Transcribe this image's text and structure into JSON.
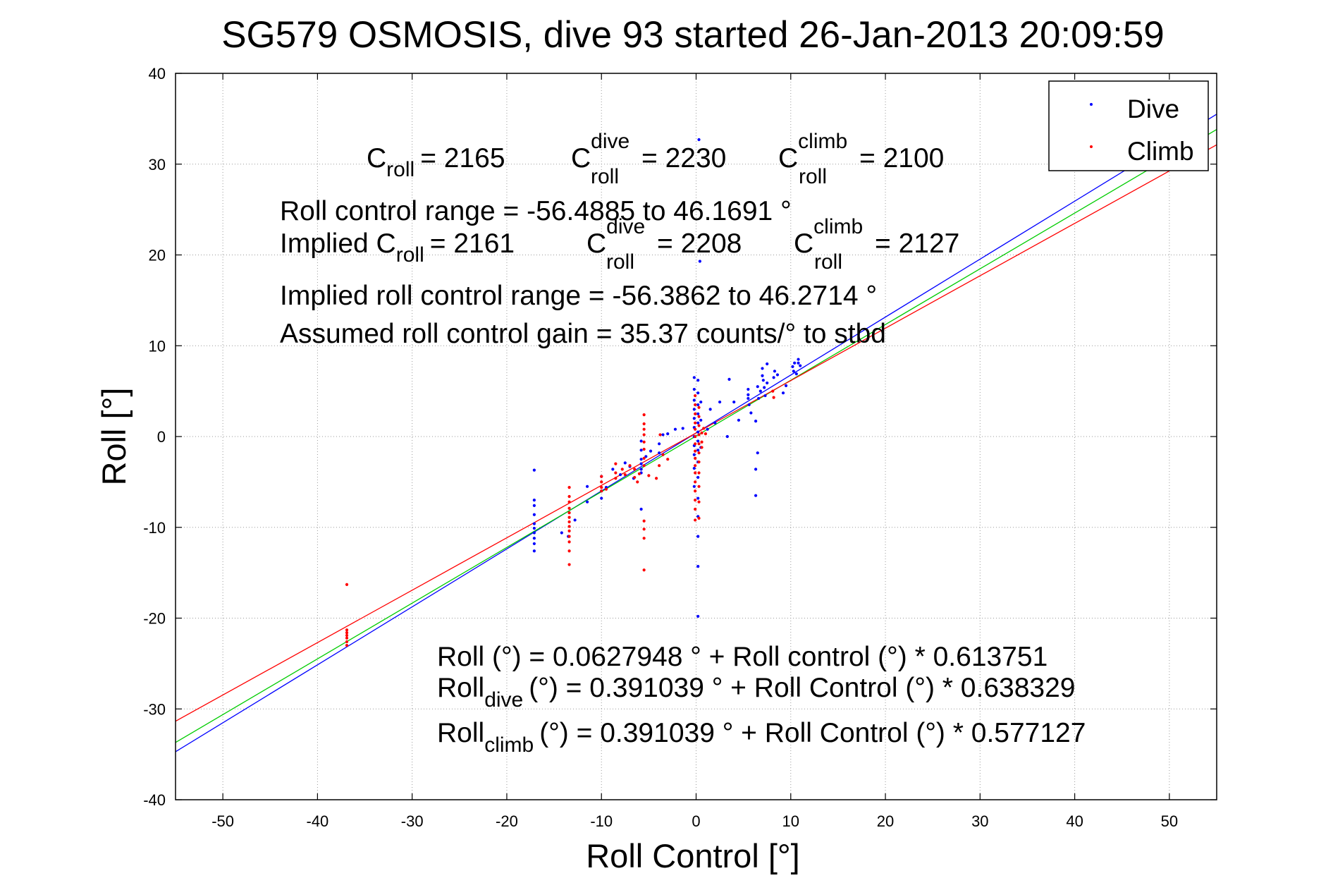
{
  "chart_data": {
    "type": "scatter",
    "title": "SG579 OSMOSIS, dive 93 started 26-Jan-2013 20:09:59",
    "xlabel": "Roll Control [°]",
    "ylabel": "Roll [°]",
    "xlim": [
      -55,
      55
    ],
    "ylim": [
      -40,
      40
    ],
    "xticks": [
      -50,
      -40,
      -30,
      -20,
      -10,
      0,
      10,
      20,
      30,
      40,
      50
    ],
    "yticks": [
      -40,
      -30,
      -20,
      -10,
      0,
      10,
      20,
      30,
      40
    ],
    "grid": true,
    "legend_position": "top-right",
    "legend": [
      {
        "label": "Dive",
        "color": "#0000ff"
      },
      {
        "label": "Climb",
        "color": "#ff0000"
      }
    ],
    "series": [
      {
        "name": "Dive",
        "color": "#0000ff",
        "marker": "dot",
        "points": [
          [
            -17.1,
            -3.7
          ],
          [
            -17.1,
            -7.0
          ],
          [
            -17.1,
            -7.6
          ],
          [
            -17.1,
            -8.6
          ],
          [
            -17.1,
            -9.6
          ],
          [
            -17.1,
            -10.1
          ],
          [
            -17.1,
            -10.6
          ],
          [
            -17.1,
            -11.2
          ],
          [
            -17.1,
            -11.8
          ],
          [
            -17.1,
            -12.6
          ],
          [
            -14.2,
            -10.6
          ],
          [
            -13.5,
            -11.0
          ],
          [
            -12.8,
            -9.2
          ],
          [
            -11.5,
            -5.5
          ],
          [
            -11.5,
            -7.2
          ],
          [
            -10.0,
            -4.4
          ],
          [
            -10.0,
            -6.0
          ],
          [
            -10.0,
            -6.8
          ],
          [
            -9.5,
            -5.6
          ],
          [
            -8.8,
            -3.6
          ],
          [
            -8.0,
            -4.2
          ],
          [
            -7.5,
            -2.9
          ],
          [
            -7.0,
            -3.3
          ],
          [
            -6.6,
            -4.6
          ],
          [
            -5.8,
            -0.5
          ],
          [
            -5.8,
            -1.5
          ],
          [
            -5.8,
            -2.5
          ],
          [
            -5.8,
            -3.0
          ],
          [
            -5.8,
            -3.6
          ],
          [
            -5.8,
            -4.0
          ],
          [
            -5.8,
            -8.0
          ],
          [
            -5.3,
            -2.2
          ],
          [
            -4.8,
            -1.6
          ],
          [
            -3.9,
            -0.8
          ],
          [
            -3.9,
            -1.8
          ],
          [
            -3.5,
            0.2
          ],
          [
            -3.0,
            0.3
          ],
          [
            -2.2,
            0.8
          ],
          [
            -1.4,
            0.9
          ],
          [
            -0.2,
            6.5
          ],
          [
            -0.2,
            5.2
          ],
          [
            -0.2,
            4.0
          ],
          [
            -0.2,
            3.0
          ],
          [
            -0.2,
            2.0
          ],
          [
            -0.2,
            1.0
          ],
          [
            -0.2,
            0.0
          ],
          [
            -0.2,
            -1.0
          ],
          [
            -0.2,
            -2.0
          ],
          [
            -0.2,
            -3.5
          ],
          [
            -0.2,
            -5.5
          ],
          [
            0.2,
            6.2
          ],
          [
            0.2,
            4.8
          ],
          [
            0.2,
            3.5
          ],
          [
            0.2,
            2.5
          ],
          [
            0.2,
            1.5
          ],
          [
            0.2,
            0.5
          ],
          [
            0.2,
            -0.5
          ],
          [
            0.2,
            -1.5
          ],
          [
            0.2,
            -2.8
          ],
          [
            0.2,
            -4.5
          ],
          [
            0.2,
            -6.8
          ],
          [
            0.2,
            -8.8
          ],
          [
            0.2,
            -11.0
          ],
          [
            0.2,
            -14.3
          ],
          [
            0.2,
            -19.8
          ],
          [
            0.3,
            32.7
          ],
          [
            0.4,
            19.3
          ],
          [
            0.5,
            -1.2
          ],
          [
            0.5,
            1.8
          ],
          [
            0.5,
            3.8
          ],
          [
            1.2,
            0.8
          ],
          [
            1.5,
            3.0
          ],
          [
            2.0,
            1.5
          ],
          [
            2.5,
            3.8
          ],
          [
            3.3,
            0.0
          ],
          [
            3.5,
            6.3
          ],
          [
            4.0,
            3.8
          ],
          [
            4.5,
            1.8
          ],
          [
            5.5,
            5.2
          ],
          [
            5.5,
            4.6
          ],
          [
            5.5,
            4.2
          ],
          [
            5.6,
            3.5
          ],
          [
            5.8,
            2.6
          ],
          [
            6.3,
            -3.6
          ],
          [
            6.3,
            -6.5
          ],
          [
            6.3,
            1.7
          ],
          [
            6.5,
            5.5
          ],
          [
            6.5,
            -1.8
          ],
          [
            6.6,
            4.2
          ],
          [
            6.8,
            5.0
          ],
          [
            7.0,
            7.5
          ],
          [
            7.0,
            6.7
          ],
          [
            7.1,
            6.2
          ],
          [
            7.2,
            5.4
          ],
          [
            7.3,
            4.5
          ],
          [
            7.5,
            8.0
          ],
          [
            7.5,
            5.9
          ],
          [
            8.2,
            6.5
          ],
          [
            8.3,
            7.2
          ],
          [
            8.6,
            6.8
          ],
          [
            9.2,
            4.8
          ],
          [
            9.5,
            5.6
          ],
          [
            10.2,
            7.7
          ],
          [
            10.3,
            7.2
          ],
          [
            10.4,
            8.1
          ],
          [
            10.6,
            6.9
          ],
          [
            10.8,
            8.5
          ],
          [
            10.8,
            8.1
          ],
          [
            11.0,
            7.8
          ]
        ]
      },
      {
        "name": "Climb",
        "color": "#ff0000",
        "marker": "dot",
        "points": [
          [
            -36.9,
            -16.3
          ],
          [
            -36.9,
            -21.3
          ],
          [
            -36.9,
            -21.6
          ],
          [
            -36.9,
            -21.9
          ],
          [
            -36.9,
            -22.2
          ],
          [
            -36.9,
            -22.6
          ],
          [
            -36.9,
            -23.0
          ],
          [
            -13.4,
            -5.6
          ],
          [
            -13.4,
            -6.6
          ],
          [
            -13.4,
            -7.2
          ],
          [
            -13.4,
            -7.9
          ],
          [
            -13.4,
            -8.4
          ],
          [
            -13.4,
            -8.9
          ],
          [
            -13.4,
            -9.4
          ],
          [
            -13.4,
            -9.9
          ],
          [
            -13.4,
            -10.4
          ],
          [
            -13.4,
            -11.0
          ],
          [
            -13.4,
            -11.6
          ],
          [
            -13.4,
            -12.6
          ],
          [
            -13.4,
            -14.1
          ],
          [
            -10.0,
            -4.4
          ],
          [
            -10.0,
            -5.0
          ],
          [
            -10.0,
            -5.6
          ],
          [
            -10.0,
            -6.0
          ],
          [
            -9.5,
            -5.8
          ],
          [
            -8.5,
            -3.0
          ],
          [
            -8.5,
            -4.0
          ],
          [
            -8.5,
            -4.6
          ],
          [
            -7.8,
            -3.6
          ],
          [
            -7.5,
            -4.2
          ],
          [
            -7.0,
            -3.2
          ],
          [
            -6.5,
            -3.6
          ],
          [
            -6.5,
            -4.5
          ],
          [
            -6.2,
            -5.0
          ],
          [
            -6.0,
            -4.1
          ],
          [
            -5.5,
            2.4
          ],
          [
            -5.5,
            1.4
          ],
          [
            -5.5,
            0.8
          ],
          [
            -5.5,
            0.2
          ],
          [
            -5.5,
            -0.6
          ],
          [
            -5.5,
            -1.4
          ],
          [
            -5.5,
            -2.4
          ],
          [
            -5.5,
            -3.2
          ],
          [
            -5.5,
            -9.3
          ],
          [
            -5.5,
            -10.2
          ],
          [
            -5.5,
            -11.2
          ],
          [
            -5.5,
            -14.7
          ],
          [
            -5.0,
            -4.3
          ],
          [
            -4.2,
            -4.6
          ],
          [
            -3.9,
            -3.2
          ],
          [
            -3.8,
            0.2
          ],
          [
            -3.5,
            -2.0
          ],
          [
            -3.0,
            -2.5
          ],
          [
            -0.1,
            4.5
          ],
          [
            -0.1,
            3.5
          ],
          [
            -0.1,
            2.5
          ],
          [
            -0.1,
            1.5
          ],
          [
            -0.1,
            0.8
          ],
          [
            -0.1,
            0.0
          ],
          [
            -0.1,
            -0.8
          ],
          [
            -0.1,
            -1.6
          ],
          [
            -0.1,
            -2.4
          ],
          [
            -0.1,
            -3.2
          ],
          [
            -0.1,
            -4.0
          ],
          [
            -0.1,
            -5.0
          ],
          [
            -0.1,
            -6.0
          ],
          [
            -0.1,
            -7.0
          ],
          [
            -0.1,
            -8.0
          ],
          [
            -0.1,
            -9.2
          ],
          [
            0.3,
            3.2
          ],
          [
            0.3,
            2.2
          ],
          [
            0.3,
            1.2
          ],
          [
            0.3,
            0.2
          ],
          [
            0.3,
            -0.8
          ],
          [
            0.3,
            -1.8
          ],
          [
            0.3,
            -2.8
          ],
          [
            0.3,
            -4.0
          ],
          [
            0.3,
            -5.5
          ],
          [
            0.3,
            -7.2
          ],
          [
            0.3,
            -9.0
          ],
          [
            0.6,
            0.4
          ],
          [
            0.6,
            -0.6
          ],
          [
            0.6,
            -1.2
          ],
          [
            0.8,
            0.9
          ],
          [
            1.0,
            0.3
          ],
          [
            8.1,
            5.0
          ],
          [
            8.2,
            4.3
          ]
        ]
      }
    ],
    "fit_lines": [
      {
        "name": "Dive fit",
        "color": "#0000ff",
        "intercept": 0.391039,
        "slope": 0.638329
      },
      {
        "name": "All fit",
        "color": "#00cc00",
        "intercept": 0.0627948,
        "slope": 0.613751
      },
      {
        "name": "Climb fit",
        "color": "#ff0000",
        "intercept": 0.391039,
        "slope": 0.577127
      }
    ],
    "annotations": {
      "c_roll": {
        "base": "C",
        "sub": "roll",
        "value": "= 2165"
      },
      "c_roll_dive": {
        "base": "C",
        "sup": "dive",
        "sub": "roll",
        "value": "= 2230"
      },
      "c_roll_climb": {
        "base": "C",
        "sup": "climb",
        "sub": "roll",
        "value": "= 2100"
      },
      "range": "Roll control range = -56.4885 to 46.1691 °",
      "implied_c_roll": {
        "prefix": "Implied C",
        "sub": "roll",
        "value": "= 2161"
      },
      "implied_c_roll_dive": {
        "base": "C",
        "sup": "dive",
        "sub": "roll",
        "value": "= 2208"
      },
      "implied_c_roll_climb": {
        "base": "C",
        "sup": "climb",
        "sub": "roll",
        "value": "= 2127"
      },
      "implied_range": "Implied roll control range = -56.3862 to 46.2714 °",
      "gain": "Assumed roll control gain = 35.37 counts/° to stbd",
      "eq_all": "Roll (°) = 0.0627948 ° + Roll control (°) * 0.613751",
      "eq_dive": {
        "base": "Roll",
        "sub": "dive",
        "rest": "(°) = 0.391039 ° + Roll Control (°) * 0.638329"
      },
      "eq_climb": {
        "base": "Roll",
        "sub": "climb",
        "rest": "(°) = 0.391039 ° + Roll Control (°) * 0.577127"
      }
    }
  }
}
